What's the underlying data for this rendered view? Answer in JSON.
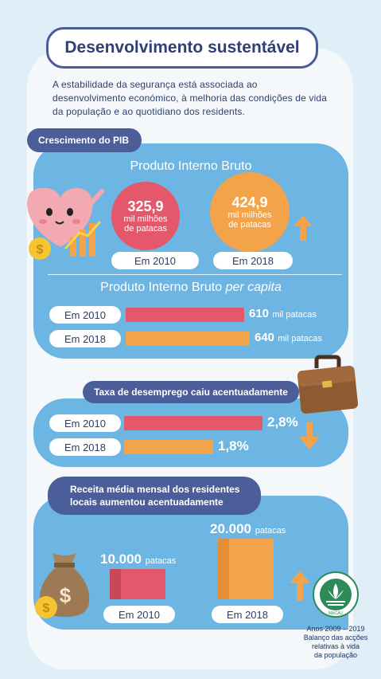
{
  "title": "Desenvolvimento sustentável",
  "intro": "A estabilidade da segurança está associada ao desenvolvimento económico, à melhoria das condições de vida da população e ao quotidiano dos residents.",
  "gdp": {
    "label": "Crescimento do PIB",
    "title": "Produto Interno Bruto",
    "y2010": {
      "value": "325,9",
      "unit_line1": "mil milhões",
      "unit_line2": "de patacas",
      "year": "Em 2010"
    },
    "y2018": {
      "value": "424,9",
      "unit_line1": "mil milhões",
      "unit_line2": "de patacas",
      "year": "Em 2018"
    },
    "per_capita_title": "Produto Interno Bruto",
    "per_capita_suffix": "per capita",
    "per_capita": [
      {
        "year": "Em 2010",
        "value": "610",
        "unit": "mil patacas",
        "amount": 610
      },
      {
        "year": "Em 2018",
        "value": "640",
        "unit": "mil patacas",
        "amount": 640
      }
    ]
  },
  "unemployment": {
    "label": "Taxa de desemprego caiu acentuadamente",
    "rows": [
      {
        "year": "Em 2010",
        "value": "2,8%",
        "rate": 2.8
      },
      {
        "year": "Em 2018",
        "value": "1,8%",
        "rate": 1.8
      }
    ]
  },
  "income": {
    "label_line1": "Receita média mensal dos residentes",
    "label_line2": "locais aumentou acentuadamente",
    "y2010": {
      "value": "10.000",
      "unit": "patacas",
      "year": "Em 2010",
      "amount": 10000
    },
    "y2018": {
      "value": "20.000",
      "unit": "patacas",
      "year": "Em 2018",
      "amount": 20000
    }
  },
  "emblem": {
    "text": "MACAU",
    "caption_line1": "Anos 2009 – 2019",
    "caption_line2": "Balanço das acções",
    "caption_line3": "relativas à vida",
    "caption_line4": "da população"
  },
  "colors": {
    "navy": "#4b5e9a",
    "blue": "#6db6e3",
    "red": "#e5576a",
    "orange": "#f3a34a",
    "green": "#2e8b57"
  }
}
